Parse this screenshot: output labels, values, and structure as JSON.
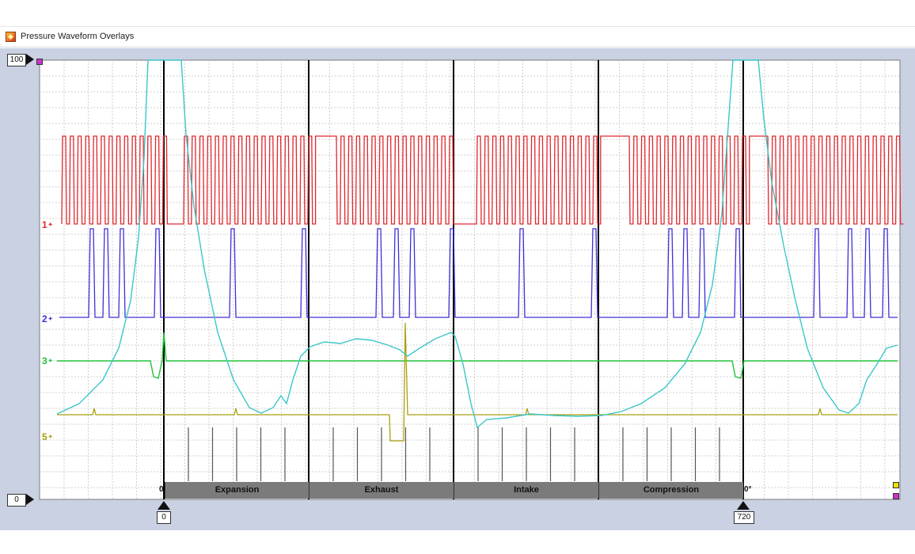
{
  "window": {
    "title": "Pressure Waveform Overlays",
    "icon": "waveform-app-icon"
  },
  "rulers": {
    "y_top": "100",
    "y_bottom": "0",
    "x_left": "0",
    "x_right": "720"
  },
  "channels": [
    {
      "label": "1",
      "color": "#e0282e"
    },
    {
      "label": "2",
      "color": "#3f30d6"
    },
    {
      "label": "3",
      "color": "#21c43a"
    },
    {
      "label": "5",
      "color": "#a8a010"
    }
  ],
  "channel_tick": "✦",
  "strokes": [
    {
      "label": "Expansion"
    },
    {
      "label": "Exhaust"
    },
    {
      "label": "Intake"
    },
    {
      "label": "Compression"
    }
  ],
  "band_edge_labels": {
    "left": "0",
    "right": "0°"
  },
  "colors": {
    "pressure_trace": "#3cc6c8",
    "grid": "#cfcfcf",
    "plot_bg": "#ffffff",
    "frame_bg": "#c9d1e3",
    "cursor": "#000000",
    "band": "#7b7b7b",
    "corner_marker": "#cc33cc",
    "corner_marker_right": "#e8e000"
  }
}
